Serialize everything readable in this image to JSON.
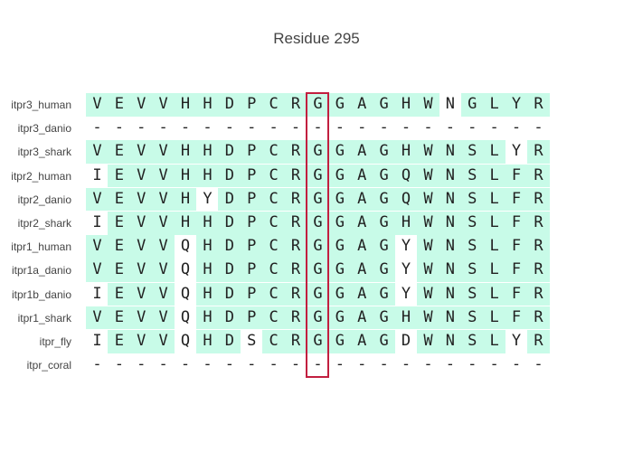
{
  "title": "Residue 295",
  "highlight_column": 10,
  "colors": {
    "conserved_bg": "#c8fbe8",
    "highlight_border": "#c21f3f",
    "text": "#444444"
  },
  "alignment": {
    "rows": [
      {
        "label": "itpr3_human",
        "residues": "VEVVHHDPCRGGAGHWNGLYR",
        "bg": "111111111111111101111"
      },
      {
        "label": "itpr3_danio",
        "residues": "---------------------",
        "bg": "000000000000000000000"
      },
      {
        "label": "itpr3_shark",
        "residues": "VEVVHHDPCRGGAGHWNSLYR",
        "bg": "111111111111111111101"
      },
      {
        "label": "itpr2_human",
        "residues": "IEVVHHDPCRGGAGQWNSLFR",
        "bg": "011111111111111111111"
      },
      {
        "label": "itpr2_danio",
        "residues": "VEVVHYDPCRGGAGQWNSLFR",
        "bg": "111110111111111111111"
      },
      {
        "label": "itpr2_shark",
        "residues": "IEVVHHDPCRGGAGHWNSLFR",
        "bg": "011111111111111111111"
      },
      {
        "label": "itpr1_human",
        "residues": "VEVVQHDPCRGGAGYWNSLFR",
        "bg": "111101111111110111111"
      },
      {
        "label": "itpr1a_danio",
        "residues": "VEVVQHDPCRGGAGYWNSLFR",
        "bg": "111101111111110111111"
      },
      {
        "label": "itpr1b_danio",
        "residues": "IEVVQHDPCRGGAGYWNSLFR",
        "bg": "011101111111110111111"
      },
      {
        "label": "itpr1_shark",
        "residues": "VEVVQHDPCRGGAGHWNSLFR",
        "bg": "111101111111111111111"
      },
      {
        "label": "itpr_fly",
        "residues": "IEVVQHDSCRGGAGDWNSLYR",
        "bg": "011101101111110111101"
      },
      {
        "label": "itpr_coral",
        "residues": "---------------------",
        "bg": "000000000000000000000"
      }
    ]
  }
}
